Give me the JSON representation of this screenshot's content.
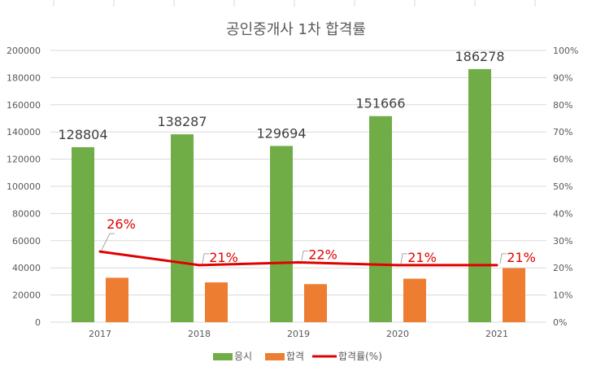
{
  "chart_data": {
    "type": "bar",
    "title": "공인중개사 1차 합격률",
    "categories": [
      "2017",
      "2018",
      "2019",
      "2020",
      "2021"
    ],
    "series": [
      {
        "name": "응시",
        "type": "bar",
        "axis": "left",
        "color": "#70ad47",
        "values": [
          128804,
          138287,
          129694,
          151666,
          186278
        ],
        "labels": [
          "128804",
          "138287",
          "129694",
          "151666",
          "186278"
        ]
      },
      {
        "name": "합격",
        "type": "bar",
        "axis": "left",
        "color": "#ed7d31",
        "values": [
          32700,
          29300,
          28000,
          32000,
          39800
        ]
      },
      {
        "name": "합격률(%)",
        "type": "line",
        "axis": "right",
        "color": "#e00000",
        "values": [
          26,
          21,
          22,
          21,
          21
        ],
        "labels": [
          "26%",
          "21%",
          "22%",
          "21%",
          "21%"
        ]
      }
    ],
    "y_left": {
      "min": 0,
      "max": 200000,
      "step": 20000,
      "ticks": [
        "0",
        "20000",
        "40000",
        "60000",
        "80000",
        "100000",
        "120000",
        "140000",
        "160000",
        "180000",
        "200000"
      ]
    },
    "y_right": {
      "min": 0,
      "max": 100,
      "step": 10,
      "ticks": [
        "0%",
        "10%",
        "20%",
        "30%",
        "40%",
        "50%",
        "60%",
        "70%",
        "80%",
        "90%",
        "100%"
      ]
    },
    "grid": true,
    "legend": {
      "position": "bottom",
      "items": [
        "응시",
        "합격",
        "합격률(%)"
      ]
    }
  }
}
